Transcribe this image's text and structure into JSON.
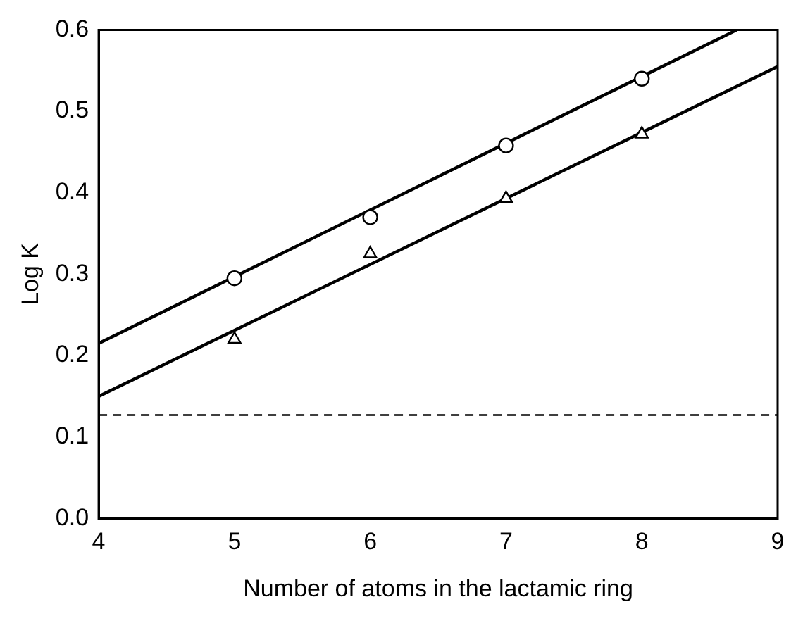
{
  "chart_data": {
    "type": "scatter",
    "xlabel": "Number of atoms in the lactamic ring",
    "ylabel": "Log K",
    "xlim": [
      4,
      9
    ],
    "xticks": [
      4,
      5,
      6,
      7,
      8,
      9
    ],
    "ylim": [
      0.0,
      0.6
    ],
    "yticks": [
      {
        "value": 0,
        "label": "0.0"
      },
      0.1,
      0.2,
      0.3,
      0.4,
      0.5,
      0.6
    ],
    "grid": false,
    "legend": false,
    "series": [
      {
        "marker": "circle",
        "color": "#000000",
        "x": [
          5,
          6,
          7,
          8
        ],
        "values": [
          0.295,
          0.37,
          0.458,
          0.54
        ]
      },
      {
        "marker": "triangle",
        "color": "#000000",
        "x": [
          5,
          6,
          7,
          8
        ],
        "values": [
          0.22,
          0.325,
          0.393,
          0.472
        ]
      },
      {
        "type": "line",
        "marker": "none",
        "line_style": "solid",
        "color": "#000000",
        "x": [
          4,
          8.7
        ],
        "values": [
          0.215,
          0.6
        ]
      },
      {
        "type": "line",
        "marker": "none",
        "line_style": "solid",
        "color": "#000000",
        "x": [
          4,
          9
        ],
        "values": [
          0.15,
          0.555
        ]
      }
    ],
    "ref_lines": [
      {
        "axis": "y",
        "value": 0.127,
        "line_style": "dashed",
        "color": "#000000"
      }
    ]
  }
}
